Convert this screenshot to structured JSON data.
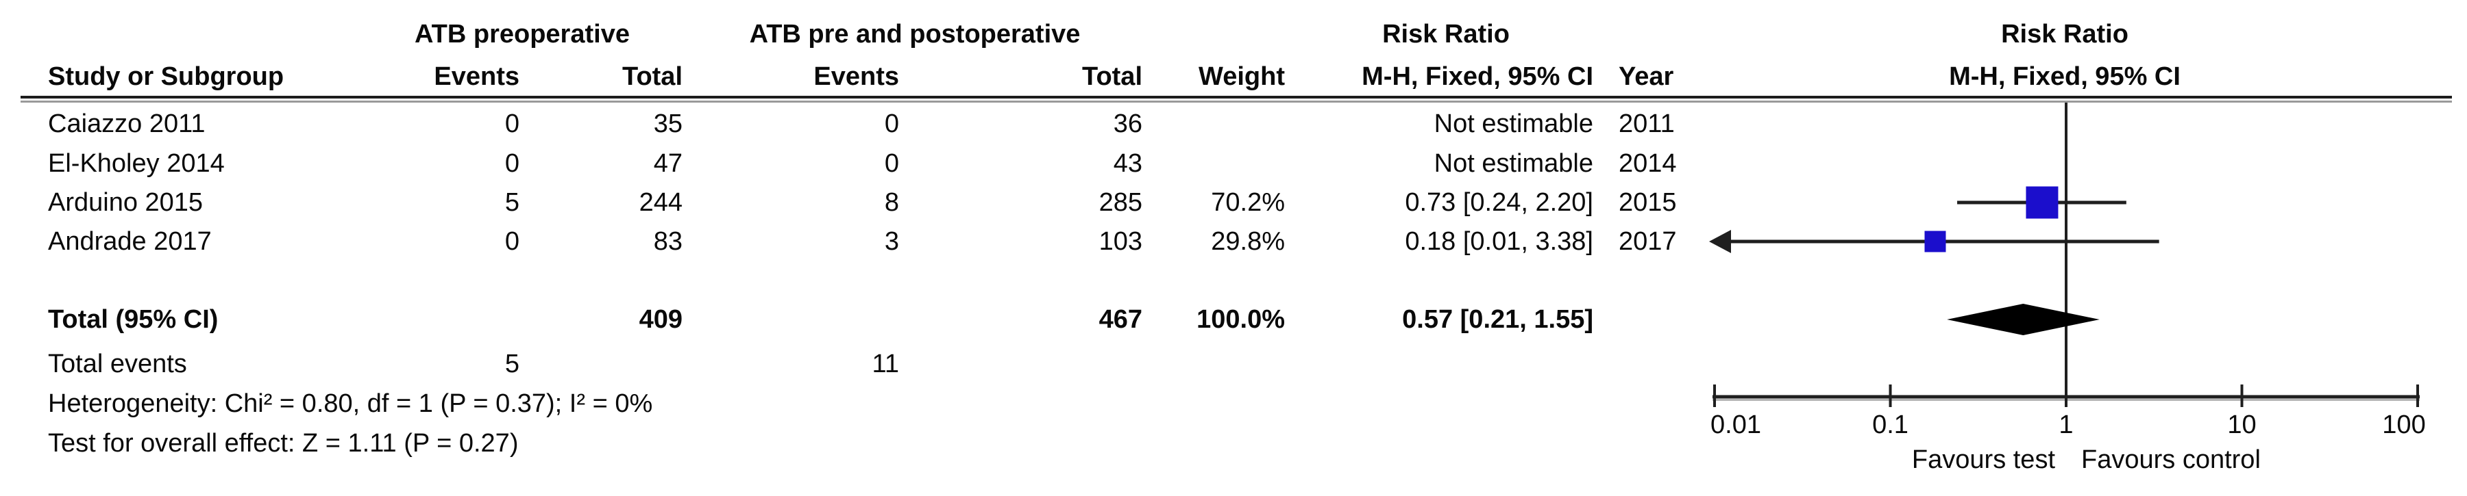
{
  "headers": {
    "group1": "ATB preoperative",
    "group2": "ATB pre and postoperative",
    "risk_ratio": "Risk Ratio",
    "study": "Study or Subgroup",
    "events": "Events",
    "total": "Total",
    "weight": "Weight",
    "mh_fixed_ci": "M-H, Fixed, 95% CI",
    "year": "Year"
  },
  "chart_data": {
    "type": "forest_plot",
    "effect_measure": "Risk Ratio",
    "method": "M-H, Fixed, 95% CI",
    "studies": [
      {
        "name": "Caiazzo 2011",
        "events_test": "0",
        "total_test": "35",
        "events_control": "0",
        "total_control": "36",
        "weight": "",
        "rr_ci": "Not estimable",
        "year": "2011",
        "estimable": false,
        "rr": null,
        "ci_low": null,
        "ci_high": null,
        "weight_pct": null,
        "ci_low_arrow": false
      },
      {
        "name": "El-Kholey 2014",
        "events_test": "0",
        "total_test": "47",
        "events_control": "0",
        "total_control": "43",
        "weight": "",
        "rr_ci": "Not estimable",
        "year": "2014",
        "estimable": false,
        "rr": null,
        "ci_low": null,
        "ci_high": null,
        "weight_pct": null,
        "ci_low_arrow": false
      },
      {
        "name": "Arduino 2015",
        "events_test": "5",
        "total_test": "244",
        "events_control": "8",
        "total_control": "285",
        "weight": "70.2%",
        "rr_ci": "0.73 [0.24, 2.20]",
        "year": "2015",
        "estimable": true,
        "rr": 0.73,
        "ci_low": 0.24,
        "ci_high": 2.2,
        "weight_pct": 70.2,
        "ci_low_arrow": false
      },
      {
        "name": "Andrade 2017",
        "events_test": "0",
        "total_test": "83",
        "events_control": "3",
        "total_control": "103",
        "weight": "29.8%",
        "rr_ci": "0.18 [0.01, 3.38]",
        "year": "2017",
        "estimable": true,
        "rr": 0.18,
        "ci_low": 0.01,
        "ci_high": 3.38,
        "weight_pct": 29.8,
        "ci_low_arrow": true
      }
    ],
    "total": {
      "label": "Total (95% CI)",
      "total_test": "409",
      "total_control": "467",
      "weight": "100.0%",
      "rr_ci": "0.57 [0.21, 1.55]",
      "rr": 0.57,
      "ci_low": 0.21,
      "ci_high": 1.55
    },
    "total_events": {
      "label": "Total events",
      "test": "5",
      "control": "11"
    },
    "footnotes": {
      "heterogeneity": "Heterogeneity: Chi² = 0.80, df = 1 (P = 0.37); I² = 0%",
      "overall_effect": "Test for overall effect: Z = 1.11 (P = 0.27)"
    },
    "axis": {
      "scale": "log10",
      "min": 0.01,
      "max": 100,
      "null_line": 1,
      "ticks": [
        0.01,
        0.1,
        1,
        10,
        100
      ],
      "tick_labels": [
        "0.01",
        "0.1",
        "1",
        "10",
        "100"
      ]
    },
    "favours": {
      "left": "Favours test",
      "right": "Favours control"
    },
    "colors": {
      "square": "#1b0ecc",
      "diamond": "#000000",
      "line": "#1f1f1f",
      "text": "#0a0a0a"
    }
  }
}
